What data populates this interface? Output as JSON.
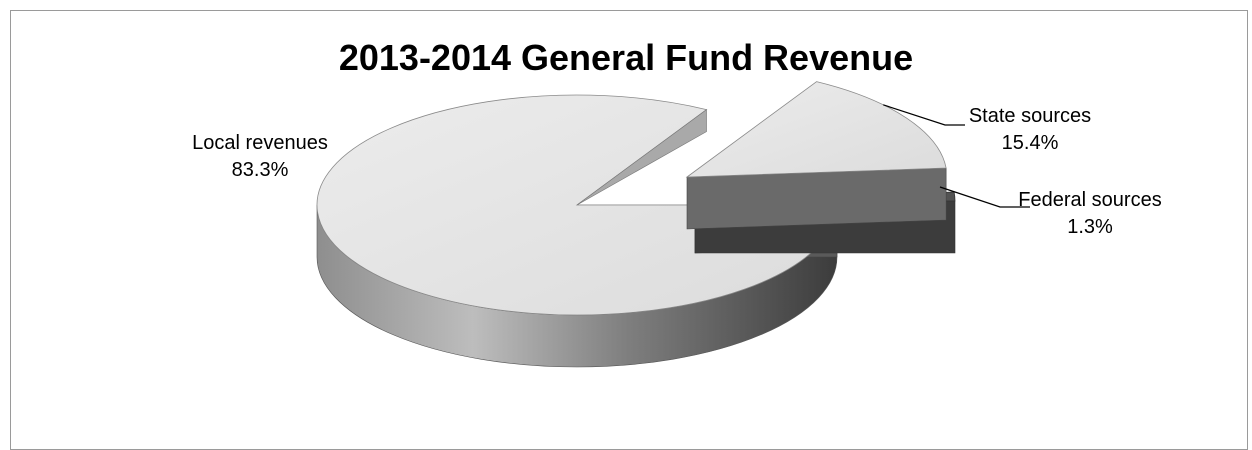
{
  "chart_data": {
    "type": "pie",
    "title": "2013-2014 General Fund Revenue",
    "slices": [
      {
        "name": "Local revenues",
        "value": 83.3,
        "label": "83.3%",
        "exploded": false
      },
      {
        "name": "State sources",
        "value": 15.4,
        "label": "15.4%",
        "exploded": true
      },
      {
        "name": "Federal sources",
        "value": 1.3,
        "label": "1.3%",
        "exploded": true
      }
    ],
    "style": "3d-exploded",
    "colors": {
      "top_face": "#e3e3e3",
      "federal_top": "#525252",
      "edge_light": "#b4b4b4",
      "edge_dark": "#3c3c3c",
      "border": "#9a9a9a"
    }
  }
}
